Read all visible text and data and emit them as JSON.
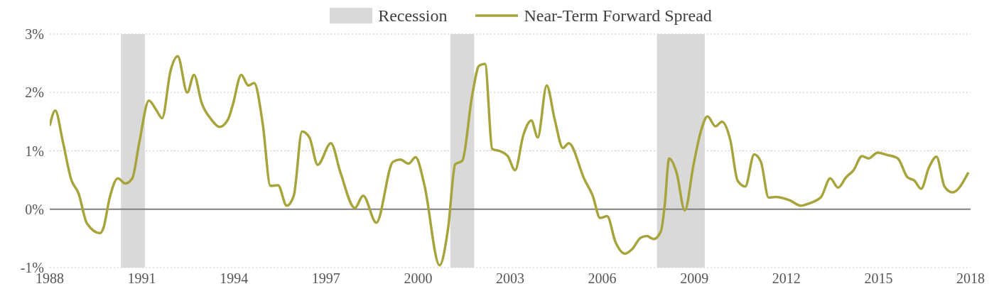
{
  "chart_data": {
    "type": "line",
    "legend": "top",
    "grid": "y",
    "line_style": "solid",
    "marker": "none",
    "xlim": [
      1988,
      2018
    ],
    "xticks": [
      1988,
      1991,
      1994,
      1997,
      2000,
      2003,
      2006,
      2009,
      2012,
      2015,
      2018
    ],
    "ylim": [
      -1,
      3
    ],
    "yticks": [
      {
        "value": -1,
        "label": "-1%"
      },
      {
        "value": 0,
        "label": "0%"
      },
      {
        "value": 1,
        "label": "1%"
      },
      {
        "value": 2,
        "label": "2%"
      },
      {
        "value": 3,
        "label": "3%"
      }
    ],
    "bands": [
      {
        "axis": "x",
        "from": 1990.32,
        "to": 1991.1,
        "label": "Recession",
        "color": "#d9d9d9"
      },
      {
        "axis": "x",
        "from": 2001.05,
        "to": 2001.83,
        "color": "#d9d9d9"
      },
      {
        "axis": "x",
        "from": 2007.78,
        "to": 2009.34,
        "color": "#d9d9d9"
      }
    ],
    "ref_lines": [
      {
        "axis": "y",
        "value": 0,
        "color": "#808080",
        "line_style": "solid"
      }
    ],
    "series": [
      {
        "name": "Near-Term Forward Spread",
        "color": "#a8a43c",
        "x": [
          1988.0,
          1988.18,
          1988.43,
          1988.7,
          1988.94,
          1989.21,
          1989.64,
          1989.75,
          1989.95,
          1990.22,
          1990.46,
          1990.69,
          1990.92,
          1991.23,
          1991.47,
          1991.66,
          1991.94,
          1992.17,
          1992.48,
          1992.7,
          1992.95,
          1993.26,
          1993.53,
          1993.81,
          1993.96,
          1994.24,
          1994.47,
          1994.66,
          1994.94,
          1995.19,
          1995.44,
          1995.72,
          1995.95,
          1996.22,
          1996.46,
          1996.73,
          1997.16,
          1997.47,
          1997.94,
          1998.21,
          1998.64,
          1999.18,
          1999.42,
          1999.69,
          1999.92,
          2000.2,
          2000.7,
          2000.98,
          2001.21,
          2001.44,
          2001.76,
          2001.99,
          2002.18,
          2002.42,
          2002.69,
          2002.92,
          2003.16,
          2003.43,
          2003.69,
          2003.9,
          2004.19,
          2004.45,
          2004.72,
          2004.91,
          2005.42,
          2005.69,
          2005.93,
          2006.16,
          2006.43,
          2006.74,
          2006.98,
          2007.25,
          2007.45,
          2007.68,
          2007.91,
          2008.03,
          2008.18,
          2008.42,
          2008.69,
          2008.97,
          2009.2,
          2009.43,
          2009.69,
          2009.9,
          2010.17,
          2010.41,
          2010.66,
          2010.95,
          2011.17,
          2011.42,
          2011.65,
          2012.12,
          2012.47,
          2012.74,
          2013.13,
          2013.43,
          2013.68,
          2013.95,
          2014.19,
          2014.46,
          2014.68,
          2014.97,
          2015.28,
          2015.63,
          2015.94,
          2016.17,
          2016.39,
          2016.64,
          2016.89,
          2017.15,
          2017.41,
          2017.93
        ],
        "values": [
          1.43,
          1.69,
          1.15,
          0.51,
          0.27,
          -0.24,
          -0.41,
          -0.32,
          0.19,
          0.53,
          0.44,
          0.53,
          1.15,
          1.86,
          1.7,
          1.56,
          2.38,
          2.62,
          2.0,
          2.3,
          1.82,
          1.54,
          1.41,
          1.54,
          1.78,
          2.3,
          2.12,
          2.16,
          1.46,
          0.4,
          0.41,
          0.06,
          0.23,
          1.33,
          1.23,
          0.76,
          1.13,
          0.63,
          0.02,
          0.23,
          -0.23,
          0.81,
          0.85,
          0.78,
          0.89,
          0.43,
          -0.96,
          -0.32,
          0.77,
          0.83,
          1.94,
          2.46,
          2.49,
          1.03,
          0.99,
          0.91,
          0.67,
          1.27,
          1.52,
          1.23,
          2.12,
          1.54,
          1.05,
          1.13,
          0.51,
          0.23,
          -0.15,
          -0.12,
          -0.56,
          -0.76,
          -0.68,
          -0.49,
          -0.46,
          -0.51,
          -0.38,
          0.04,
          0.87,
          0.63,
          -0.02,
          0.75,
          1.31,
          1.59,
          1.42,
          1.5,
          1.19,
          0.49,
          0.39,
          0.94,
          0.81,
          0.2,
          0.21,
          0.15,
          0.06,
          0.1,
          0.21,
          0.53,
          0.37,
          0.55,
          0.67,
          0.91,
          0.87,
          0.97,
          0.93,
          0.87,
          0.55,
          0.49,
          0.35,
          0.71,
          0.9,
          0.39,
          0.29,
          0.63
        ]
      }
    ]
  }
}
